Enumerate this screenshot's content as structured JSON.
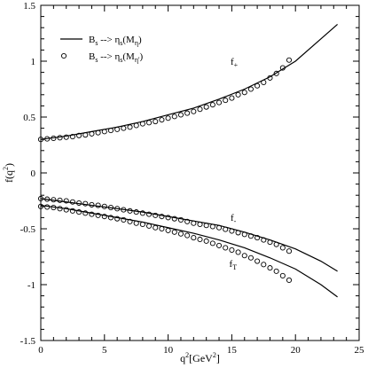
{
  "chart_data": {
    "type": "line",
    "title": "",
    "xlabel": {
      "main": "q",
      "sup": "2",
      "unit_pre": "[GeV",
      "unit_sup": "2",
      "unit_post": "]"
    },
    "ylabel": {
      "main": "f(q",
      "sup": "2",
      "post": ")"
    },
    "xlim": [
      0,
      25
    ],
    "ylim": [
      -1.5,
      1.5
    ],
    "xticks": [
      0,
      5,
      10,
      15,
      20,
      25
    ],
    "yticks": [
      -1.5,
      -1,
      -0.5,
      0,
      0.5,
      1,
      1.5
    ],
    "xtick_labels": [
      "0",
      "5",
      "10",
      "15",
      "20",
      "25"
    ],
    "ytick_labels": [
      "-1.5",
      "-1",
      "-0.5",
      "0",
      "0.5",
      "1",
      "1.5"
    ],
    "grid": false,
    "legend": {
      "position": "top-left",
      "entries": [
        {
          "marker": "line",
          "label": {
            "main": "B",
            "sub1": "s",
            "mid": " --> η",
            "sub2": "s",
            "paren": "(M",
            "sub3": "η",
            "close": ")"
          }
        },
        {
          "marker": "circle",
          "label": {
            "main": "B",
            "sub1": "s",
            "mid": " --> η",
            "sub2": "s",
            "paren": "(M",
            "sub3": "η'",
            "close": ")"
          }
        }
      ]
    },
    "annotations": [
      {
        "main": "f",
        "sub": "+",
        "x": 14.9,
        "y": 0.97
      },
      {
        "main": "f",
        "sub": "-",
        "x": 14.9,
        "y": -0.43
      },
      {
        "main": "f",
        "sub": "T",
        "x": 14.8,
        "y": -0.84
      }
    ],
    "series": [
      {
        "marker": "line",
        "x": [
          0,
          2,
          4,
          6,
          8,
          10,
          12,
          14,
          16,
          18,
          20,
          22,
          23.3
        ],
        "y": [
          0.3,
          0.33,
          0.37,
          0.41,
          0.46,
          0.52,
          0.58,
          0.66,
          0.75,
          0.86,
          1.0,
          1.2,
          1.33
        ]
      },
      {
        "marker": "circles",
        "x": [
          0,
          0.5,
          1,
          1.5,
          2,
          2.5,
          3,
          3.5,
          4,
          4.5,
          5,
          5.5,
          6,
          6.5,
          7,
          7.5,
          8,
          8.5,
          9,
          9.5,
          10,
          10.5,
          11,
          11.5,
          12,
          12.5,
          13,
          13.5,
          14,
          14.5,
          15,
          15.5,
          16,
          16.5,
          17,
          17.5,
          18,
          18.5,
          19,
          19.5
        ],
        "y": [
          0.3,
          0.305,
          0.31,
          0.315,
          0.32,
          0.325,
          0.335,
          0.34,
          0.35,
          0.36,
          0.37,
          0.38,
          0.39,
          0.4,
          0.41,
          0.425,
          0.44,
          0.45,
          0.46,
          0.475,
          0.49,
          0.505,
          0.52,
          0.535,
          0.55,
          0.57,
          0.59,
          0.61,
          0.63,
          0.65,
          0.67,
          0.7,
          0.72,
          0.75,
          0.78,
          0.81,
          0.85,
          0.89,
          0.94,
          1.01
        ]
      },
      {
        "marker": "line",
        "x": [
          0,
          2,
          4,
          6,
          8,
          10,
          12,
          14,
          16,
          18,
          20,
          22,
          23.3
        ],
        "y": [
          -0.23,
          -0.26,
          -0.29,
          -0.32,
          -0.35,
          -0.39,
          -0.43,
          -0.47,
          -0.53,
          -0.6,
          -0.68,
          -0.79,
          -0.88
        ]
      },
      {
        "marker": "circles",
        "x": [
          0,
          0.5,
          1,
          1.5,
          2,
          2.5,
          3,
          3.5,
          4,
          4.5,
          5,
          5.5,
          6,
          6.5,
          7,
          7.5,
          8,
          8.5,
          9,
          9.5,
          10,
          10.5,
          11,
          11.5,
          12,
          12.5,
          13,
          13.5,
          14,
          14.5,
          15,
          15.5,
          16,
          16.5,
          17,
          17.5,
          18,
          18.5,
          19,
          19.5
        ],
        "y": [
          -0.23,
          -0.235,
          -0.24,
          -0.245,
          -0.25,
          -0.26,
          -0.27,
          -0.275,
          -0.285,
          -0.29,
          -0.3,
          -0.31,
          -0.32,
          -0.33,
          -0.34,
          -0.35,
          -0.36,
          -0.37,
          -0.38,
          -0.39,
          -0.4,
          -0.41,
          -0.42,
          -0.435,
          -0.45,
          -0.46,
          -0.47,
          -0.48,
          -0.49,
          -0.505,
          -0.52,
          -0.535,
          -0.55,
          -0.565,
          -0.58,
          -0.6,
          -0.62,
          -0.64,
          -0.67,
          -0.7
        ]
      },
      {
        "marker": "line",
        "x": [
          0,
          2,
          4,
          6,
          8,
          10,
          12,
          14,
          16,
          18,
          20,
          22,
          23.3
        ],
        "y": [
          -0.29,
          -0.32,
          -0.36,
          -0.4,
          -0.44,
          -0.49,
          -0.54,
          -0.6,
          -0.67,
          -0.76,
          -0.86,
          -1.0,
          -1.11
        ]
      },
      {
        "marker": "circles",
        "x": [
          0,
          0.5,
          1,
          1.5,
          2,
          2.5,
          3,
          3.5,
          4,
          4.5,
          5,
          5.5,
          6,
          6.5,
          7,
          7.5,
          8,
          8.5,
          9,
          9.5,
          10,
          10.5,
          11,
          11.5,
          12,
          12.5,
          13,
          13.5,
          14,
          14.5,
          15,
          15.5,
          16,
          16.5,
          17,
          17.5,
          18,
          18.5,
          19,
          19.5
        ],
        "y": [
          -0.3,
          -0.305,
          -0.31,
          -0.32,
          -0.33,
          -0.34,
          -0.35,
          -0.36,
          -0.37,
          -0.38,
          -0.39,
          -0.4,
          -0.41,
          -0.42,
          -0.435,
          -0.45,
          -0.46,
          -0.475,
          -0.49,
          -0.5,
          -0.515,
          -0.53,
          -0.545,
          -0.56,
          -0.58,
          -0.595,
          -0.61,
          -0.63,
          -0.65,
          -0.67,
          -0.69,
          -0.71,
          -0.74,
          -0.76,
          -0.79,
          -0.82,
          -0.85,
          -0.88,
          -0.92,
          -0.96
        ]
      }
    ]
  }
}
